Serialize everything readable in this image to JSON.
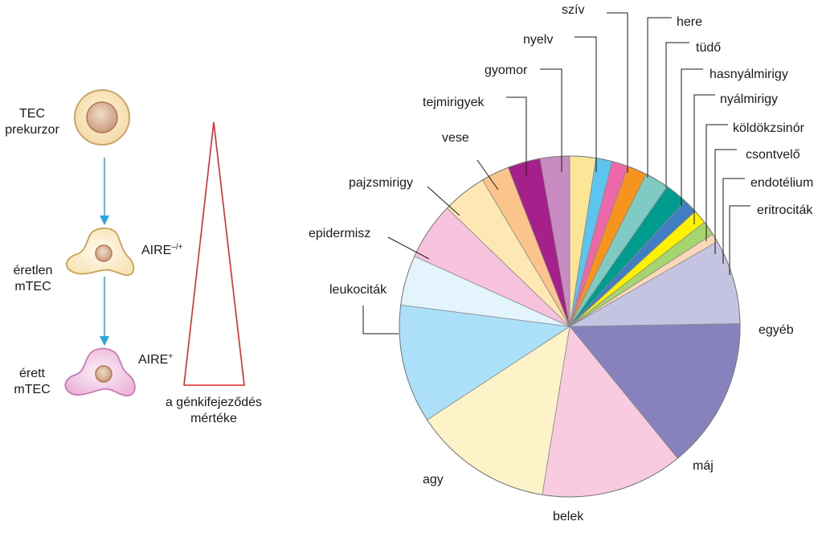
{
  "left_panel": {
    "stage_precursor": {
      "line1": "TEC",
      "line2": "prekurzor"
    },
    "stage_immature": {
      "line1": "éretlen",
      "line2": "mTEC"
    },
    "stage_mature": {
      "line1": "érett",
      "line2": "mTEC"
    },
    "aire_low": {
      "base": "AIRE",
      "sup": "–/+"
    },
    "aire_high": {
      "base": "AIRE",
      "sup": "+"
    },
    "gradient_caption": {
      "line1": "a génkifejeződés",
      "line2": "mértéke"
    },
    "colors": {
      "arrow": "#29a6df",
      "triangle": "#e0282e"
    }
  },
  "chart_data": {
    "type": "pie",
    "title": "",
    "slices": [
      {
        "label": "szív",
        "value": 2.4,
        "color": "#fde597"
      },
      {
        "label": "here",
        "value": 1.5,
        "color": "#5bc5f0"
      },
      {
        "label": "tüdő",
        "value": 1.5,
        "color": "#ee67a8"
      },
      {
        "label": "hasnyálmirigy",
        "value": 1.8,
        "color": "#f7941d"
      },
      {
        "label": "nyálmirigy",
        "value": 2.2,
        "color": "#7fcbc4"
      },
      {
        "label": "köldökzsinór",
        "value": 2.1,
        "color": "#009c8f"
      },
      {
        "label": "csontvelő",
        "value": 1.3,
        "color": "#3f7ec2"
      },
      {
        "label": "endotélium",
        "value": 1.3,
        "color": "#fff200"
      },
      {
        "label": "eritrociták",
        "value": 1.3,
        "color": "#a6d46f"
      },
      {
        "label": "",
        "value": 0.8,
        "color": "#fbd8b6"
      },
      {
        "label": "egyéb",
        "value": 7.8,
        "color": "#c5c3e2"
      },
      {
        "label": "máj",
        "value": 13.9,
        "color": "#8781bd"
      },
      {
        "label": "belek",
        "value": 13.1,
        "color": "#f8cbe0"
      },
      {
        "label": "agy",
        "value": 12.8,
        "color": "#fef2c9"
      },
      {
        "label": "leukociták",
        "value": 10.9,
        "color": "#ace0f8"
      },
      {
        "label": "epidermisz",
        "value": 4.6,
        "color": "#e3f4fc"
      },
      {
        "label": "pajzsmirigy",
        "value": 5.3,
        "color": "#f7c2dc"
      },
      {
        "label": "vese",
        "value": 4.1,
        "color": "#fde8b3"
      },
      {
        "label": "tejmirigyek",
        "value": 2.6,
        "color": "#fbc48a"
      },
      {
        "label": "gyomor",
        "value": 3.0,
        "color": "#a5208a"
      },
      {
        "label": "nyelv",
        "value": 2.7,
        "color": "#c88cc2"
      }
    ]
  }
}
